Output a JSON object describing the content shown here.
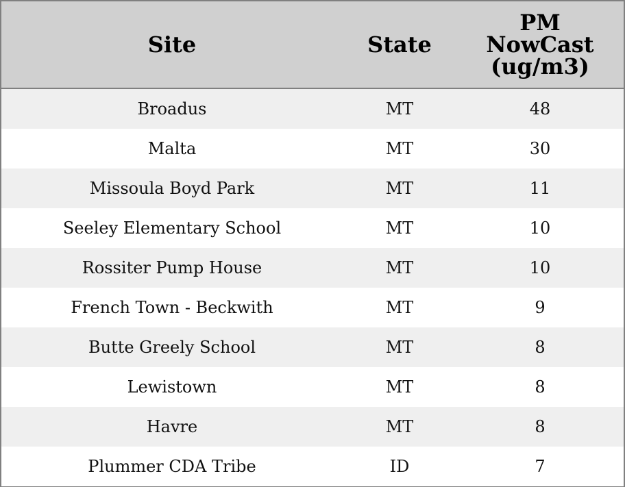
{
  "table": {
    "columns": [
      "Site",
      "State",
      "PM NowCast (ug/m3)"
    ],
    "rows": [
      [
        "Broadus",
        "MT",
        48
      ],
      [
        "Malta",
        "MT",
        30
      ],
      [
        "Missoula Boyd Park",
        "MT",
        11
      ],
      [
        "Seeley Elementary School",
        "MT",
        10
      ],
      [
        "Rossiter Pump House",
        "MT",
        10
      ],
      [
        "French Town - Beckwith",
        "MT",
        9
      ],
      [
        "Butte Greely School",
        "MT",
        8
      ],
      [
        "Lewistown",
        "MT",
        8
      ],
      [
        "Havre",
        "MT",
        8
      ],
      [
        "Plummer CDA Tribe",
        "ID",
        7
      ]
    ]
  }
}
